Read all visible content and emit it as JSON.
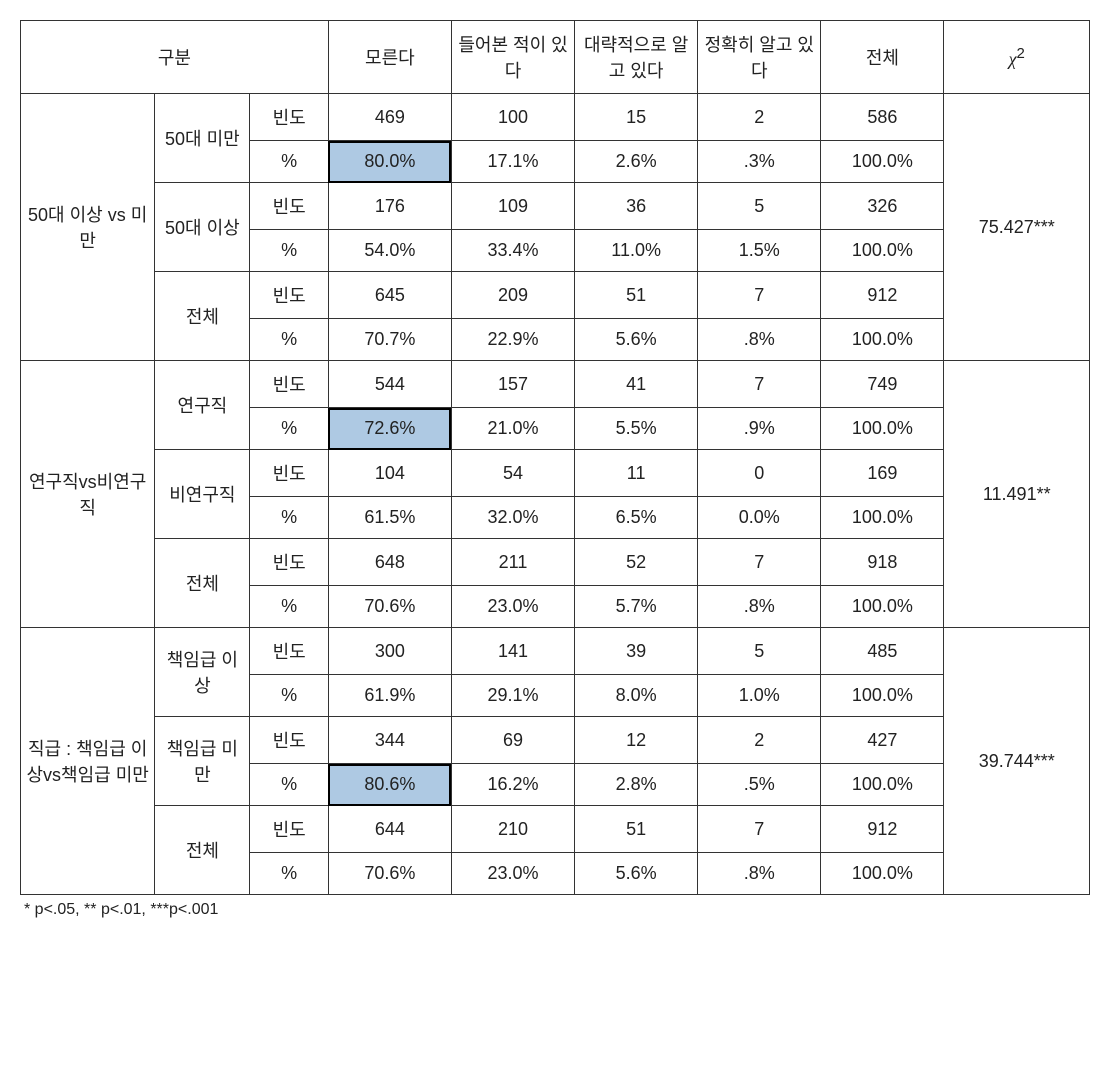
{
  "table": {
    "type": "table",
    "colors": {
      "highlight_bg": "#aec9e3",
      "border": "#333333",
      "text": "#222222",
      "background": "#ffffff"
    },
    "fontsize": 18,
    "footnote": "* p<.05,  ** p<.01,  ***p<.001",
    "headers": {
      "category": "구분",
      "c1": "모른다",
      "c2": "들어본 적이 있다",
      "c3": "대략적으로 알고 있다",
      "c4": "정확히 알고 있다",
      "c5": "전체",
      "chi": "χ²"
    },
    "groups": [
      {
        "label": "50대 이상 vs 미만",
        "chi": "75.427***",
        "subgroups": [
          {
            "label": "50대 미만",
            "freq_label": "빈도",
            "pct_label": "%",
            "freq": [
              "469",
              "100",
              "15",
              "2",
              "586"
            ],
            "pct": [
              "80.0%",
              "17.1%",
              "2.6%",
              ".3%",
              "100.0%"
            ],
            "highlight_col": 0
          },
          {
            "label": "50대 이상",
            "freq_label": "빈도",
            "pct_label": "%",
            "freq": [
              "176",
              "109",
              "36",
              "5",
              "326"
            ],
            "pct": [
              "54.0%",
              "33.4%",
              "11.0%",
              "1.5%",
              "100.0%"
            ],
            "highlight_col": -1
          },
          {
            "label": "전체",
            "freq_label": "빈도",
            "pct_label": "%",
            "freq": [
              "645",
              "209",
              "51",
              "7",
              "912"
            ],
            "pct": [
              "70.7%",
              "22.9%",
              "5.6%",
              ".8%",
              "100.0%"
            ],
            "highlight_col": -1
          }
        ]
      },
      {
        "label": "연구직vs비연구직",
        "chi": "11.491**",
        "subgroups": [
          {
            "label": "연구직",
            "freq_label": "빈도",
            "pct_label": "%",
            "freq": [
              "544",
              "157",
              "41",
              "7",
              "749"
            ],
            "pct": [
              "72.6%",
              "21.0%",
              "5.5%",
              ".9%",
              "100.0%"
            ],
            "highlight_col": 0
          },
          {
            "label": "비연구직",
            "freq_label": "빈도",
            "pct_label": "%",
            "freq": [
              "104",
              "54",
              "11",
              "0",
              "169"
            ],
            "pct": [
              "61.5%",
              "32.0%",
              "6.5%",
              "0.0%",
              "100.0%"
            ],
            "highlight_col": -1
          },
          {
            "label": "전체",
            "freq_label": "빈도",
            "pct_label": "%",
            "freq": [
              "648",
              "211",
              "52",
              "7",
              "918"
            ],
            "pct": [
              "70.6%",
              "23.0%",
              "5.7%",
              ".8%",
              "100.0%"
            ],
            "highlight_col": -1
          }
        ]
      },
      {
        "label": "직급 : 책임급 이상vs책임급 미만",
        "chi": "39.744***",
        "subgroups": [
          {
            "label": "책임급 이상",
            "freq_label": "빈도",
            "pct_label": "%",
            "freq": [
              "300",
              "141",
              "39",
              "5",
              "485"
            ],
            "pct": [
              "61.9%",
              "29.1%",
              "8.0%",
              "1.0%",
              "100.0%"
            ],
            "highlight_col": -1
          },
          {
            "label": "책임급 미만",
            "freq_label": "빈도",
            "pct_label": "%",
            "freq": [
              "344",
              "69",
              "12",
              "2",
              "427"
            ],
            "pct": [
              "80.6%",
              "16.2%",
              "2.8%",
              ".5%",
              "100.0%"
            ],
            "highlight_col": 0
          },
          {
            "label": "전체",
            "freq_label": "빈도",
            "pct_label": "%",
            "freq": [
              "644",
              "210",
              "51",
              "7",
              "912"
            ],
            "pct": [
              "70.6%",
              "23.0%",
              "5.6%",
              ".8%",
              "100.0%"
            ],
            "highlight_col": -1
          }
        ]
      }
    ]
  }
}
